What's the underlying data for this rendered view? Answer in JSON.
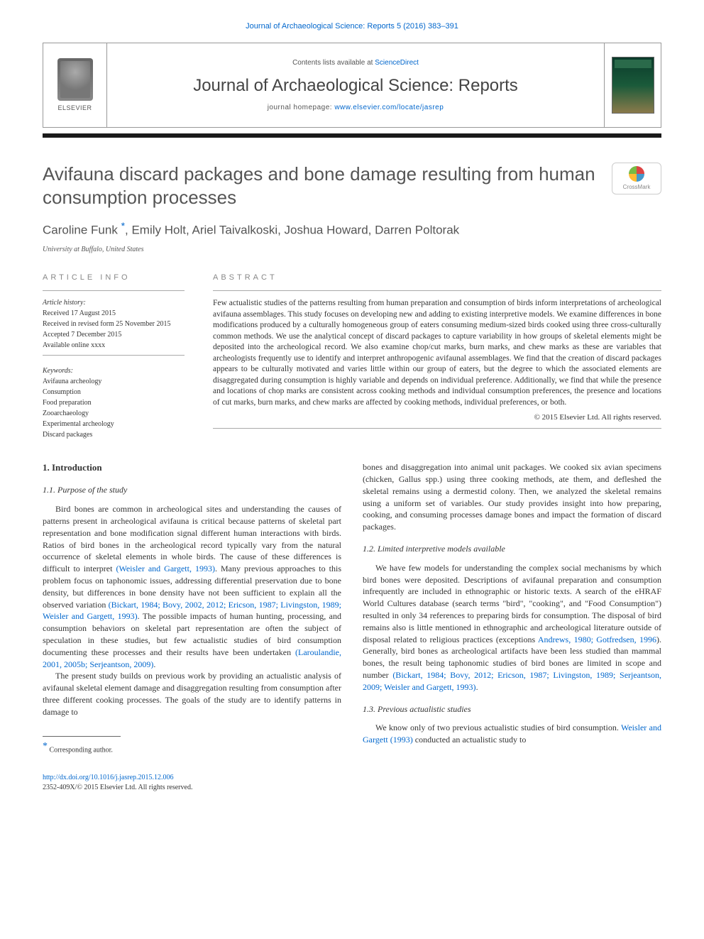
{
  "header": {
    "top_citation": "Journal of Archaeological Science: Reports 5 (2016) 383–391",
    "contents_prefix": "Contents lists available at ",
    "contents_link": "ScienceDirect",
    "journal_name": "Journal of Archaeological Science: Reports",
    "homepage_prefix": "journal homepage: ",
    "homepage_link": "www.elsevier.com/locate/jasrep",
    "elsevier_label": "ELSEVIER",
    "crossmark_label": "CrossMark"
  },
  "article": {
    "title": "Avifauna discard packages and bone damage resulting from human consumption processes",
    "authors": "Caroline Funk ",
    "authors_rest": ", Emily Holt, Ariel Taivalkoski, Joshua Howard, Darren Poltorak",
    "corr_symbol": "*",
    "affiliation": "University at Buffalo, United States"
  },
  "info": {
    "label": "article info",
    "history_label": "Article history:",
    "history": [
      "Received 17 August 2015",
      "Received in revised form 25 November 2015",
      "Accepted 7 December 2015",
      "Available online xxxx"
    ],
    "keywords_label": "Keywords:",
    "keywords": [
      "Avifauna archeology",
      "Consumption",
      "Food preparation",
      "Zooarchaeology",
      "Experimental archeology",
      "Discard packages"
    ]
  },
  "abstract": {
    "label": "abstract",
    "text": "Few actualistic studies of the patterns resulting from human preparation and consumption of birds inform interpretations of archeological avifauna assemblages. This study focuses on developing new and adding to existing interpretive models. We examine differences in bone modifications produced by a culturally homogeneous group of eaters consuming medium-sized birds cooked using three cross-culturally common methods. We use the analytical concept of discard packages to capture variability in how groups of skeletal elements might be deposited into the archeological record. We also examine chop/cut marks, burn marks, and chew marks as these are variables that archeologists frequently use to identify and interpret anthropogenic avifaunal assemblages. We find that the creation of discard packages appears to be culturally motivated and varies little within our group of eaters, but the degree to which the associated elements are disaggregated during consumption is highly variable and depends on individual preference. Additionally, we find that while the presence and locations of chop marks are consistent across cooking methods and individual consumption preferences, the presence and locations of cut marks, burn marks, and chew marks are affected by cooking methods, individual preferences, or both.",
    "copyright": "© 2015 Elsevier Ltd. All rights reserved."
  },
  "body": {
    "s1_heading": "1. Introduction",
    "s11_heading": "1.1. Purpose of the study",
    "s11_p1a": "Bird bones are common in archeological sites and understanding the causes of patterns present in archeological avifauna is critical because patterns of skeletal part representation and bone modification signal different human interactions with birds. Ratios of bird bones in the archeological record typically vary from the natural occurrence of skeletal elements in whole birds. The cause of these differences is difficult to interpret ",
    "s11_p1_c1": "(Weisler and Gargett, 1993)",
    "s11_p1b": ". Many previous approaches to this problem focus on taphonomic issues, addressing differential preservation due to bone density, but differences in bone density have not been sufficient to explain all the observed variation ",
    "s11_p1_c2": "(Bickart, 1984; Bovy, 2002, 2012; Ericson, 1987; Livingston, 1989; Weisler and Gargett, 1993)",
    "s11_p1c": ". The possible impacts of human hunting, processing, and consumption behaviors on skeletal part representation are often the subject of speculation in these studies, but few actualistic studies of bird consumption documenting these processes and their results have been undertaken ",
    "s11_p1_c3": "(Laroulandie, 2001, 2005b; Serjeantson, 2009)",
    "s11_p1d": ".",
    "s11_p2": "The present study builds on previous work by providing an actualistic analysis of avifaunal skeletal element damage and disaggregation resulting from consumption after three different cooking processes. The goals of the study are to identify patterns in damage to",
    "col2_p1": "bones and disaggregation into animal unit packages. We cooked six avian specimens (chicken, Gallus spp.) using three cooking methods, ate them, and defleshed the skeletal remains using a dermestid colony. Then, we analyzed the skeletal remains using a uniform set of variables. Our study provides insight into how preparing, cooking, and consuming processes damage bones and impact the formation of discard packages.",
    "s12_heading": "1.2. Limited interpretive models available",
    "s12_p1a": "We have few models for understanding the complex social mechanisms by which bird bones were deposited. Descriptions of avifaunal preparation and consumption infrequently are included in ethnographic or historic texts. A search of the eHRAF World Cultures database (search terms \"bird\", \"cooking\", and \"Food Consumption\") resulted in only 34 references to preparing birds for consumption. The disposal of bird remains also is little mentioned in ethnographic and archeological literature outside of disposal related to religious practices (exceptions ",
    "s12_p1_c1": "Andrews, 1980; Gotfredsen, 1996",
    "s12_p1b": "). Generally, bird bones as archeological artifacts have been less studied than mammal bones, the result being taphonomic studies of bird bones are limited in scope and number ",
    "s12_p1_c2": "(Bickart, 1984; Bovy, 2012; Ericson, 1987; Livingston, 1989; Serjeantson, 2009; Weisler and Gargett, 1993)",
    "s12_p1c": ".",
    "s13_heading": "1.3. Previous actualistic studies",
    "s13_p1a": "We know only of two previous actualistic studies of bird consumption. ",
    "s13_p1_c1": "Weisler and Gargett (1993)",
    "s13_p1b": " conducted an actualistic study to"
  },
  "footnote": {
    "marker": "*",
    "text": " Corresponding author."
  },
  "footer": {
    "doi": "http://dx.doi.org/10.1016/j.jasrep.2015.12.006",
    "issn_line": "2352-409X/© 2015 Elsevier Ltd. All rights reserved."
  },
  "colors": {
    "link": "#0066cc",
    "heading": "#555555",
    "text": "#333333"
  }
}
